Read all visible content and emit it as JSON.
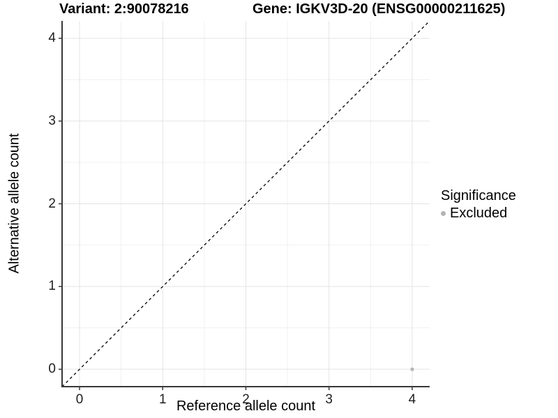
{
  "page": {
    "background": "#ffffff"
  },
  "header": {
    "variant_title": "Variant: 2:90078216",
    "gene_title": "Gene: IGKV3D-20 (ENSG00000211625)"
  },
  "axes": {
    "x_label": "Reference allele count",
    "y_label": "Alternative allele count"
  },
  "legend": {
    "title": "Significance",
    "items": [
      {
        "label": "Excluded",
        "color": "#b4b4b4"
      }
    ]
  },
  "chart_data": {
    "type": "scatter",
    "title_left": "Variant: 2:90078216",
    "title_right": "Gene: IGKV3D-20 (ENSG00000211625)",
    "xlabel": "Reference allele count",
    "ylabel": "Alternative allele count",
    "xlim": [
      -0.21,
      4.21
    ],
    "ylim": [
      -0.21,
      4.21
    ],
    "x_ticks": [
      0,
      1,
      2,
      3,
      4
    ],
    "y_ticks": [
      0,
      1,
      2,
      3,
      4
    ],
    "minor_x_ticks": [
      0.5,
      1.5,
      2.5,
      3.5
    ],
    "minor_y_ticks": [
      0.5,
      1.5,
      2.5,
      3.5
    ],
    "grid": "major+minor",
    "legend_position": "right",
    "series": [
      {
        "name": "Excluded",
        "color": "#b4b4b4",
        "points": [
          {
            "x": 4,
            "y": 0
          }
        ]
      }
    ],
    "reference_line": {
      "type": "identity",
      "style": "dashed",
      "color": "#000000"
    }
  },
  "style_colors": {
    "grid_major": "#e3e3e3",
    "grid_minor": "#f0f0f0",
    "axis_line": "#383838",
    "tick_mark": "#383838"
  }
}
